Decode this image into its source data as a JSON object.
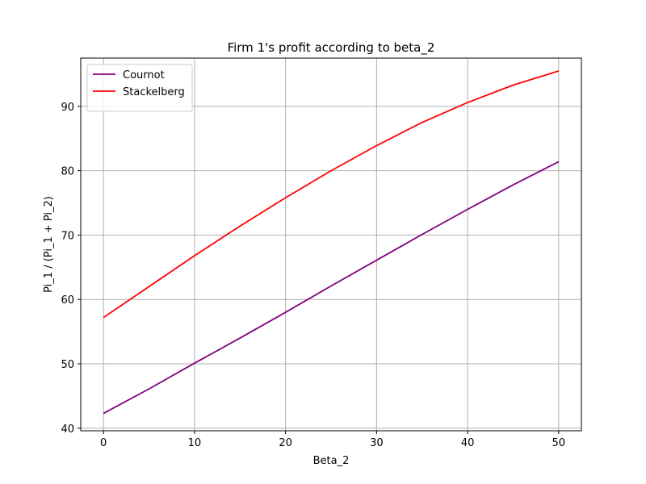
{
  "chart_data": {
    "type": "line",
    "title": "Firm 1's profit according to beta_2",
    "xlabel": "Beta_2",
    "ylabel": "Pi_1 / (Pi_1 + Pi_2)",
    "xlim": [
      -2.5,
      52.5
    ],
    "ylim": [
      39.6,
      97.5
    ],
    "xticks": [
      0,
      10,
      20,
      30,
      40,
      50
    ],
    "yticks": [
      40,
      50,
      60,
      70,
      80,
      90
    ],
    "grid": true,
    "legend_position": "top-left",
    "x": [
      0,
      5,
      10,
      15,
      20,
      25,
      30,
      35,
      40,
      45,
      50
    ],
    "series": [
      {
        "name": "Cournot",
        "color": "#800080",
        "values": [
          42.3,
          46.1,
          50.1,
          54.0,
          58.0,
          62.1,
          66.1,
          70.1,
          74.0,
          77.8,
          81.4
        ]
      },
      {
        "name": "Stackelberg",
        "color": "#ff0000",
        "values": [
          57.2,
          62.0,
          66.8,
          71.4,
          75.8,
          80.0,
          83.9,
          87.5,
          90.6,
          93.3,
          95.5
        ]
      }
    ]
  }
}
